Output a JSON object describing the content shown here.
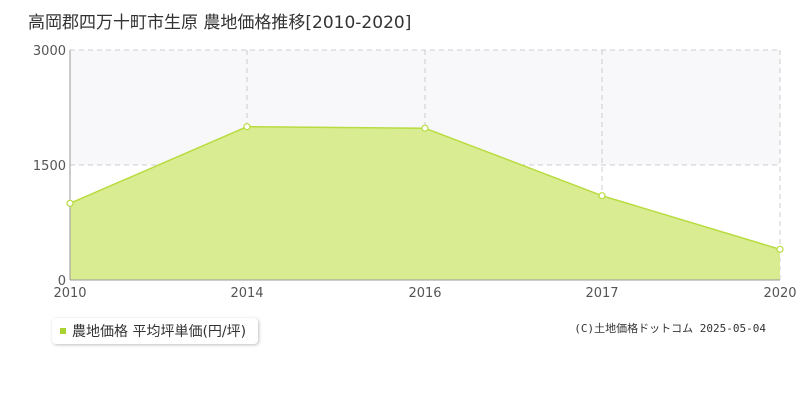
{
  "title": "高岡郡四万十町市生原 農地価格推移[2010-2020]",
  "legend_label": "農地価格 平均坪単価(円/坪)",
  "copyright": "(C)土地価格ドットコム 2025-05-04",
  "colors": {
    "area_fill": "#d9ec92",
    "line": "#b8dc40",
    "legend_marker": "#a8d22e",
    "grid": "#cccccc",
    "upper_band": "#f8f7fa"
  },
  "chart_data": {
    "type": "area",
    "categories": [
      "2010",
      "2014",
      "2016",
      "2017",
      "2020"
    ],
    "values": [
      1000,
      2000,
      1980,
      1100,
      400
    ],
    "yticks": [
      0,
      1500,
      3000
    ],
    "ylim": [
      0,
      3000
    ],
    "grid": true,
    "legend_position": "bottom-left"
  }
}
